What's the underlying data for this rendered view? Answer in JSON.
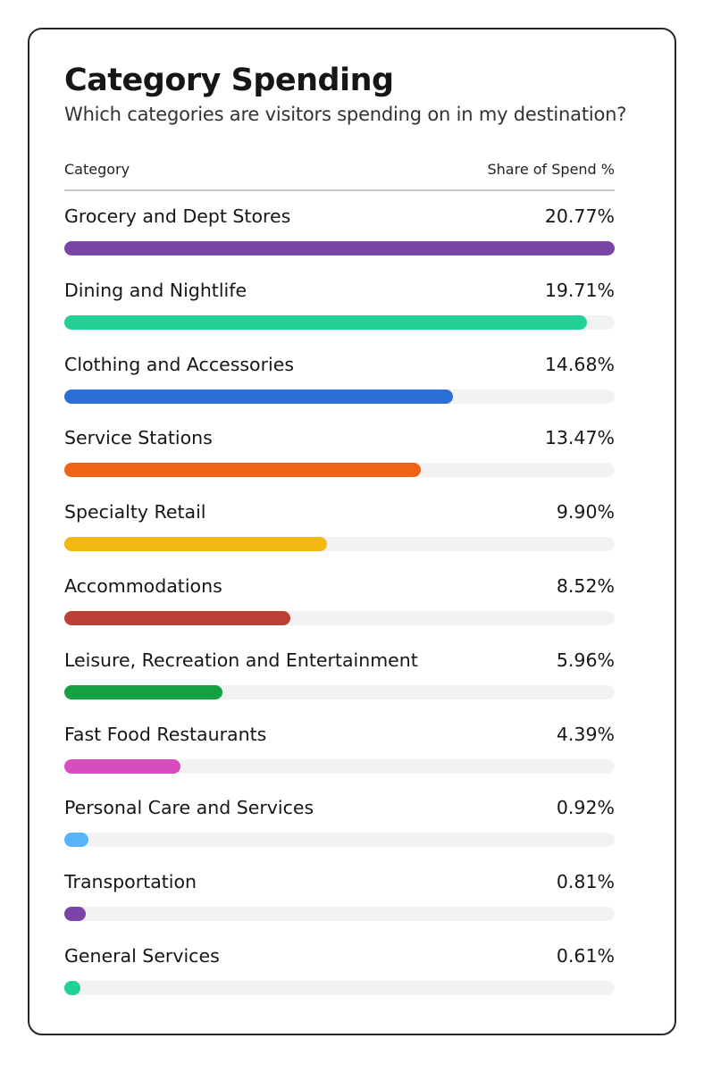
{
  "chart_data": {
    "type": "bar",
    "orientation": "horizontal",
    "title": "Category Spending",
    "subtitle": "Which categories are visitors spending on in my destination?",
    "column_headers": {
      "category": "Category",
      "value": "Share of Spend %"
    },
    "categories": [
      "Grocery and Dept Stores",
      "Dining and Nightlife",
      "Clothing and Accessories",
      "Service Stations",
      "Specialty Retail",
      "Accommodations",
      "Leisure, Recreation and Entertainment",
      "Fast Food Restaurants",
      "Personal Care and Services",
      "Transportation",
      "General Services"
    ],
    "values": [
      20.77,
      19.71,
      14.68,
      13.47,
      9.9,
      8.52,
      5.96,
      4.39,
      0.92,
      0.81,
      0.61
    ],
    "value_labels": [
      "20.77%",
      "19.71%",
      "14.68%",
      "13.47%",
      "9.90%",
      "8.52%",
      "5.96%",
      "4.39%",
      "0.92%",
      "0.81%",
      "0.61%"
    ],
    "colors": [
      "#7b45a8",
      "#23d196",
      "#2b6fd9",
      "#ee6316",
      "#f2b80f",
      "#bb3f35",
      "#16a044",
      "#d94cbd",
      "#56b4f7",
      "#7b45a8",
      "#23d196"
    ],
    "track_color": "#f2f2f2",
    "grid": false,
    "legend": "none"
  }
}
